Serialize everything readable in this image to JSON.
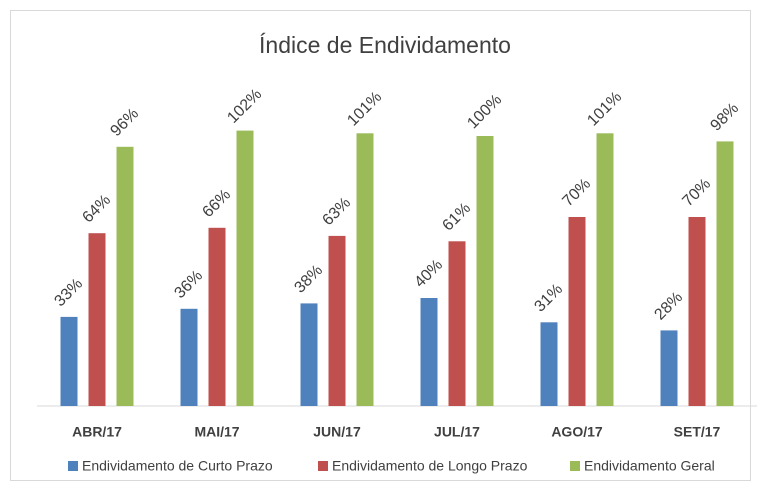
{
  "chart_data": {
    "type": "bar",
    "title": "Índice de Endividamento",
    "categories": [
      "ABR/17",
      "MAI/17",
      "JUN/17",
      "JUL/17",
      "AGO/17",
      "SET/17"
    ],
    "series": [
      {
        "name": "Endividamento de Curto Prazo",
        "color": "#4f81bd",
        "values": [
          33,
          36,
          38,
          40,
          31,
          28
        ],
        "value_labels": [
          "33%",
          "36%",
          "38%",
          "40%",
          "31%",
          "28%"
        ]
      },
      {
        "name": "Endividamento de Longo Prazo",
        "color": "#c0504d",
        "values": [
          64,
          66,
          63,
          61,
          70,
          70
        ],
        "value_labels": [
          "64%",
          "66%",
          "63%",
          "61%",
          "70%",
          "70%"
        ]
      },
      {
        "name": "Endividamento Geral",
        "color": "#9bbb59",
        "values": [
          96,
          102,
          101,
          100,
          101,
          98
        ],
        "value_labels": [
          "96%",
          "102%",
          "101%",
          "100%",
          "101%",
          "98%"
        ]
      }
    ],
    "ylim": [
      0,
      120
    ],
    "legend": "bottom"
  }
}
